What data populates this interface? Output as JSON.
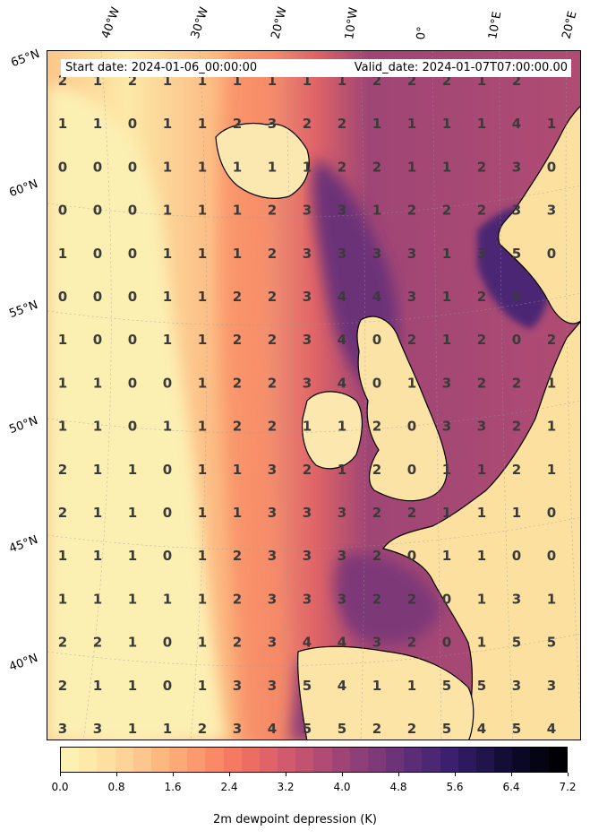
{
  "header": {
    "start_date": "Start date: 2024-01-06_00:00:00",
    "valid_date": "Valid_date: 2024-01-07T07:00:00.00"
  },
  "lon_labels": [
    "40°W",
    "30°W",
    "20°W",
    "10°W",
    "0°",
    "10°E",
    "20°E"
  ],
  "lat_labels": [
    "65°N",
    "60°N",
    "55°N",
    "50°N",
    "45°N",
    "40°N"
  ],
  "colorbar": {
    "title": "2m dewpoint depression (K)",
    "ticks": [
      "0.0",
      "0.8",
      "1.6",
      "2.4",
      "3.2",
      "4.0",
      "4.8",
      "5.6",
      "6.4",
      "7.2"
    ],
    "colors": [
      "#fcf1b5",
      "#fde9a8",
      "#fde0a0",
      "#fdd396",
      "#fdc68c",
      "#fdb880",
      "#fca877",
      "#fb9a6e",
      "#f98a65",
      "#f57a61",
      "#ec6e62",
      "#e06467",
      "#d15b6c",
      "#c15370",
      "#b04c73",
      "#9f4575",
      "#8e3f77",
      "#7d3978",
      "#6c3378",
      "#5b2d77",
      "#4b2774",
      "#3b206d",
      "#2d1a5e",
      "#20144b",
      "#140e37",
      "#0b0825",
      "#040412",
      "#000004"
    ]
  },
  "grid_values": [
    [
      "2",
      "1",
      "2",
      "1",
      "1",
      "1",
      "1",
      "1",
      "1",
      "2",
      "2",
      "2",
      "1",
      "2",
      ""
    ],
    [
      "1",
      "1",
      "0",
      "1",
      "1",
      "2",
      "3",
      "2",
      "2",
      "1",
      "1",
      "1",
      "1",
      "4",
      "1"
    ],
    [
      "0",
      "0",
      "0",
      "1",
      "1",
      "1",
      "1",
      "1",
      "2",
      "2",
      "1",
      "1",
      "2",
      "3",
      "0"
    ],
    [
      "0",
      "0",
      "0",
      "1",
      "1",
      "1",
      "2",
      "3",
      "3",
      "1",
      "2",
      "2",
      "2",
      "3",
      "3"
    ],
    [
      "1",
      "0",
      "0",
      "1",
      "1",
      "1",
      "2",
      "3",
      "3",
      "3",
      "3",
      "1",
      "3",
      "5",
      "0"
    ],
    [
      "0",
      "0",
      "0",
      "1",
      "1",
      "2",
      "2",
      "3",
      "4",
      "4",
      "3",
      "1",
      "2",
      "5",
      ""
    ],
    [
      "1",
      "0",
      "0",
      "1",
      "1",
      "2",
      "2",
      "3",
      "4",
      "0",
      "2",
      "1",
      "2",
      "0",
      "2"
    ],
    [
      "1",
      "1",
      "0",
      "0",
      "1",
      "2",
      "2",
      "3",
      "4",
      "0",
      "1",
      "3",
      "2",
      "2",
      "1"
    ],
    [
      "1",
      "1",
      "0",
      "1",
      "1",
      "2",
      "2",
      "1",
      "1",
      "2",
      "0",
      "3",
      "3",
      "2",
      "1"
    ],
    [
      "2",
      "1",
      "1",
      "0",
      "1",
      "1",
      "3",
      "2",
      "1",
      "2",
      "0",
      "1",
      "1",
      "2",
      "1"
    ],
    [
      "2",
      "1",
      "1",
      "0",
      "1",
      "1",
      "3",
      "3",
      "3",
      "2",
      "2",
      "1",
      "1",
      "1",
      "0"
    ],
    [
      "1",
      "1",
      "1",
      "0",
      "1",
      "2",
      "3",
      "3",
      "3",
      "2",
      "0",
      "1",
      "1",
      "0",
      "0"
    ],
    [
      "1",
      "1",
      "1",
      "1",
      "1",
      "2",
      "3",
      "3",
      "3",
      "2",
      "2",
      "0",
      "1",
      "3",
      "1"
    ],
    [
      "2",
      "2",
      "1",
      "0",
      "1",
      "2",
      "3",
      "4",
      "4",
      "3",
      "2",
      "0",
      "1",
      "5",
      "5"
    ],
    [
      "2",
      "1",
      "1",
      "0",
      "1",
      "3",
      "3",
      "5",
      "4",
      "1",
      "1",
      "5",
      "5",
      "3",
      "3"
    ],
    [
      "3",
      "3",
      "1",
      "1",
      "2",
      "3",
      "4",
      "5",
      "5",
      "2",
      "2",
      "5",
      "4",
      "5",
      "4"
    ]
  ]
}
